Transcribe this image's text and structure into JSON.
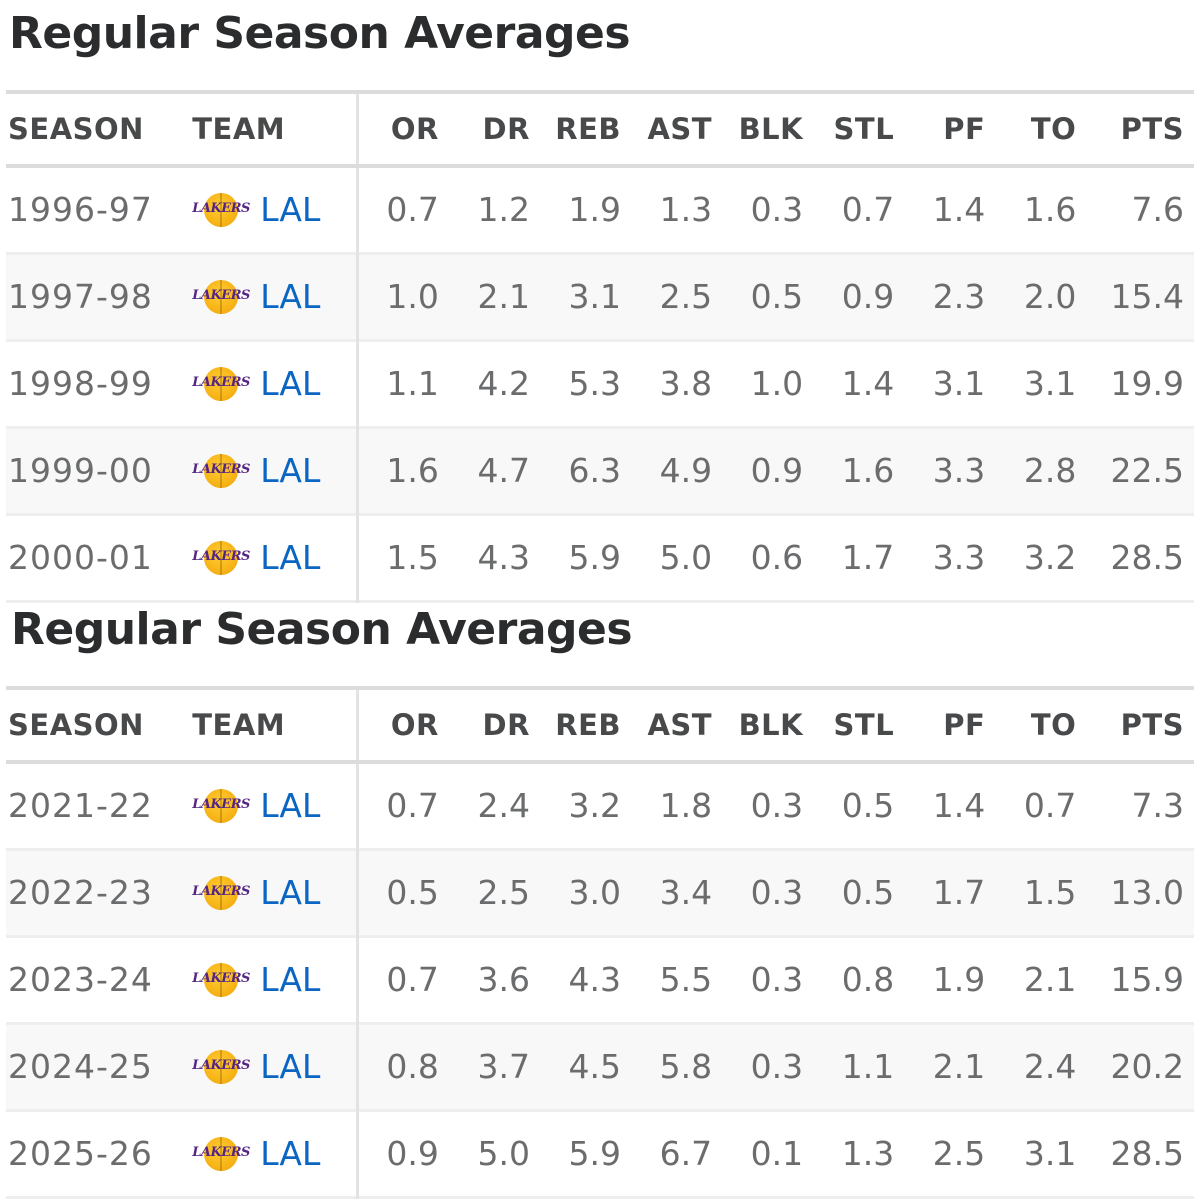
{
  "colors": {
    "link": "#0a66c2",
    "header_text": "#48494a",
    "cell_text": "#6b6c6e",
    "title_text": "#2b2c2d",
    "stripe": "#f8f8f8",
    "lakers_purple": "#552583",
    "lakers_gold": "#fdb927"
  },
  "tables": [
    {
      "title": "Regular Season Averages",
      "columns": [
        "SEASON",
        "TEAM",
        "OR",
        "DR",
        "REB",
        "AST",
        "BLK",
        "STL",
        "PF",
        "TO",
        "PTS"
      ],
      "rows": [
        {
          "season": "1996-97",
          "team_logo": "lakers-logo-icon",
          "team_logo_text": "LAKERS",
          "team": "LAL",
          "or": "0.7",
          "dr": "1.2",
          "reb": "1.9",
          "ast": "1.3",
          "blk": "0.3",
          "stl": "0.7",
          "pf": "1.4",
          "to": "1.6",
          "pts": "7.6"
        },
        {
          "season": "1997-98",
          "team_logo": "lakers-logo-icon",
          "team_logo_text": "LAKERS",
          "team": "LAL",
          "or": "1.0",
          "dr": "2.1",
          "reb": "3.1",
          "ast": "2.5",
          "blk": "0.5",
          "stl": "0.9",
          "pf": "2.3",
          "to": "2.0",
          "pts": "15.4"
        },
        {
          "season": "1998-99",
          "team_logo": "lakers-logo-icon",
          "team_logo_text": "LAKERS",
          "team": "LAL",
          "or": "1.1",
          "dr": "4.2",
          "reb": "5.3",
          "ast": "3.8",
          "blk": "1.0",
          "stl": "1.4",
          "pf": "3.1",
          "to": "3.1",
          "pts": "19.9"
        },
        {
          "season": "1999-00",
          "team_logo": "lakers-logo-icon",
          "team_logo_text": "LAKERS",
          "team": "LAL",
          "or": "1.6",
          "dr": "4.7",
          "reb": "6.3",
          "ast": "4.9",
          "blk": "0.9",
          "stl": "1.6",
          "pf": "3.3",
          "to": "2.8",
          "pts": "22.5"
        },
        {
          "season": "2000-01",
          "team_logo": "lakers-logo-icon",
          "team_logo_text": "LAKERS",
          "team": "LAL",
          "or": "1.5",
          "dr": "4.3",
          "reb": "5.9",
          "ast": "5.0",
          "blk": "0.6",
          "stl": "1.7",
          "pf": "3.3",
          "to": "3.2",
          "pts": "28.5"
        }
      ]
    },
    {
      "title": "Regular Season Averages",
      "columns": [
        "SEASON",
        "TEAM",
        "OR",
        "DR",
        "REB",
        "AST",
        "BLK",
        "STL",
        "PF",
        "TO",
        "PTS"
      ],
      "rows": [
        {
          "season": "2021-22",
          "team_logo": "lakers-logo-icon",
          "team_logo_text": "LAKERS",
          "team": "LAL",
          "or": "0.7",
          "dr": "2.4",
          "reb": "3.2",
          "ast": "1.8",
          "blk": "0.3",
          "stl": "0.5",
          "pf": "1.4",
          "to": "0.7",
          "pts": "7.3"
        },
        {
          "season": "2022-23",
          "team_logo": "lakers-logo-icon",
          "team_logo_text": "LAKERS",
          "team": "LAL",
          "or": "0.5",
          "dr": "2.5",
          "reb": "3.0",
          "ast": "3.4",
          "blk": "0.3",
          "stl": "0.5",
          "pf": "1.7",
          "to": "1.5",
          "pts": "13.0"
        },
        {
          "season": "2023-24",
          "team_logo": "lakers-logo-icon",
          "team_logo_text": "LAKERS",
          "team": "LAL",
          "or": "0.7",
          "dr": "3.6",
          "reb": "4.3",
          "ast": "5.5",
          "blk": "0.3",
          "stl": "0.8",
          "pf": "1.9",
          "to": "2.1",
          "pts": "15.9"
        },
        {
          "season": "2024-25",
          "team_logo": "lakers-logo-icon",
          "team_logo_text": "LAKERS",
          "team": "LAL",
          "or": "0.8",
          "dr": "3.7",
          "reb": "4.5",
          "ast": "5.8",
          "blk": "0.3",
          "stl": "1.1",
          "pf": "2.1",
          "to": "2.4",
          "pts": "20.2"
        },
        {
          "season": "2025-26",
          "team_logo": "lakers-logo-icon",
          "team_logo_text": "LAKERS",
          "team": "LAL",
          "or": "0.9",
          "dr": "5.0",
          "reb": "5.9",
          "ast": "6.7",
          "blk": "0.1",
          "stl": "1.3",
          "pf": "2.5",
          "to": "3.1",
          "pts": "28.5"
        }
      ]
    }
  ]
}
